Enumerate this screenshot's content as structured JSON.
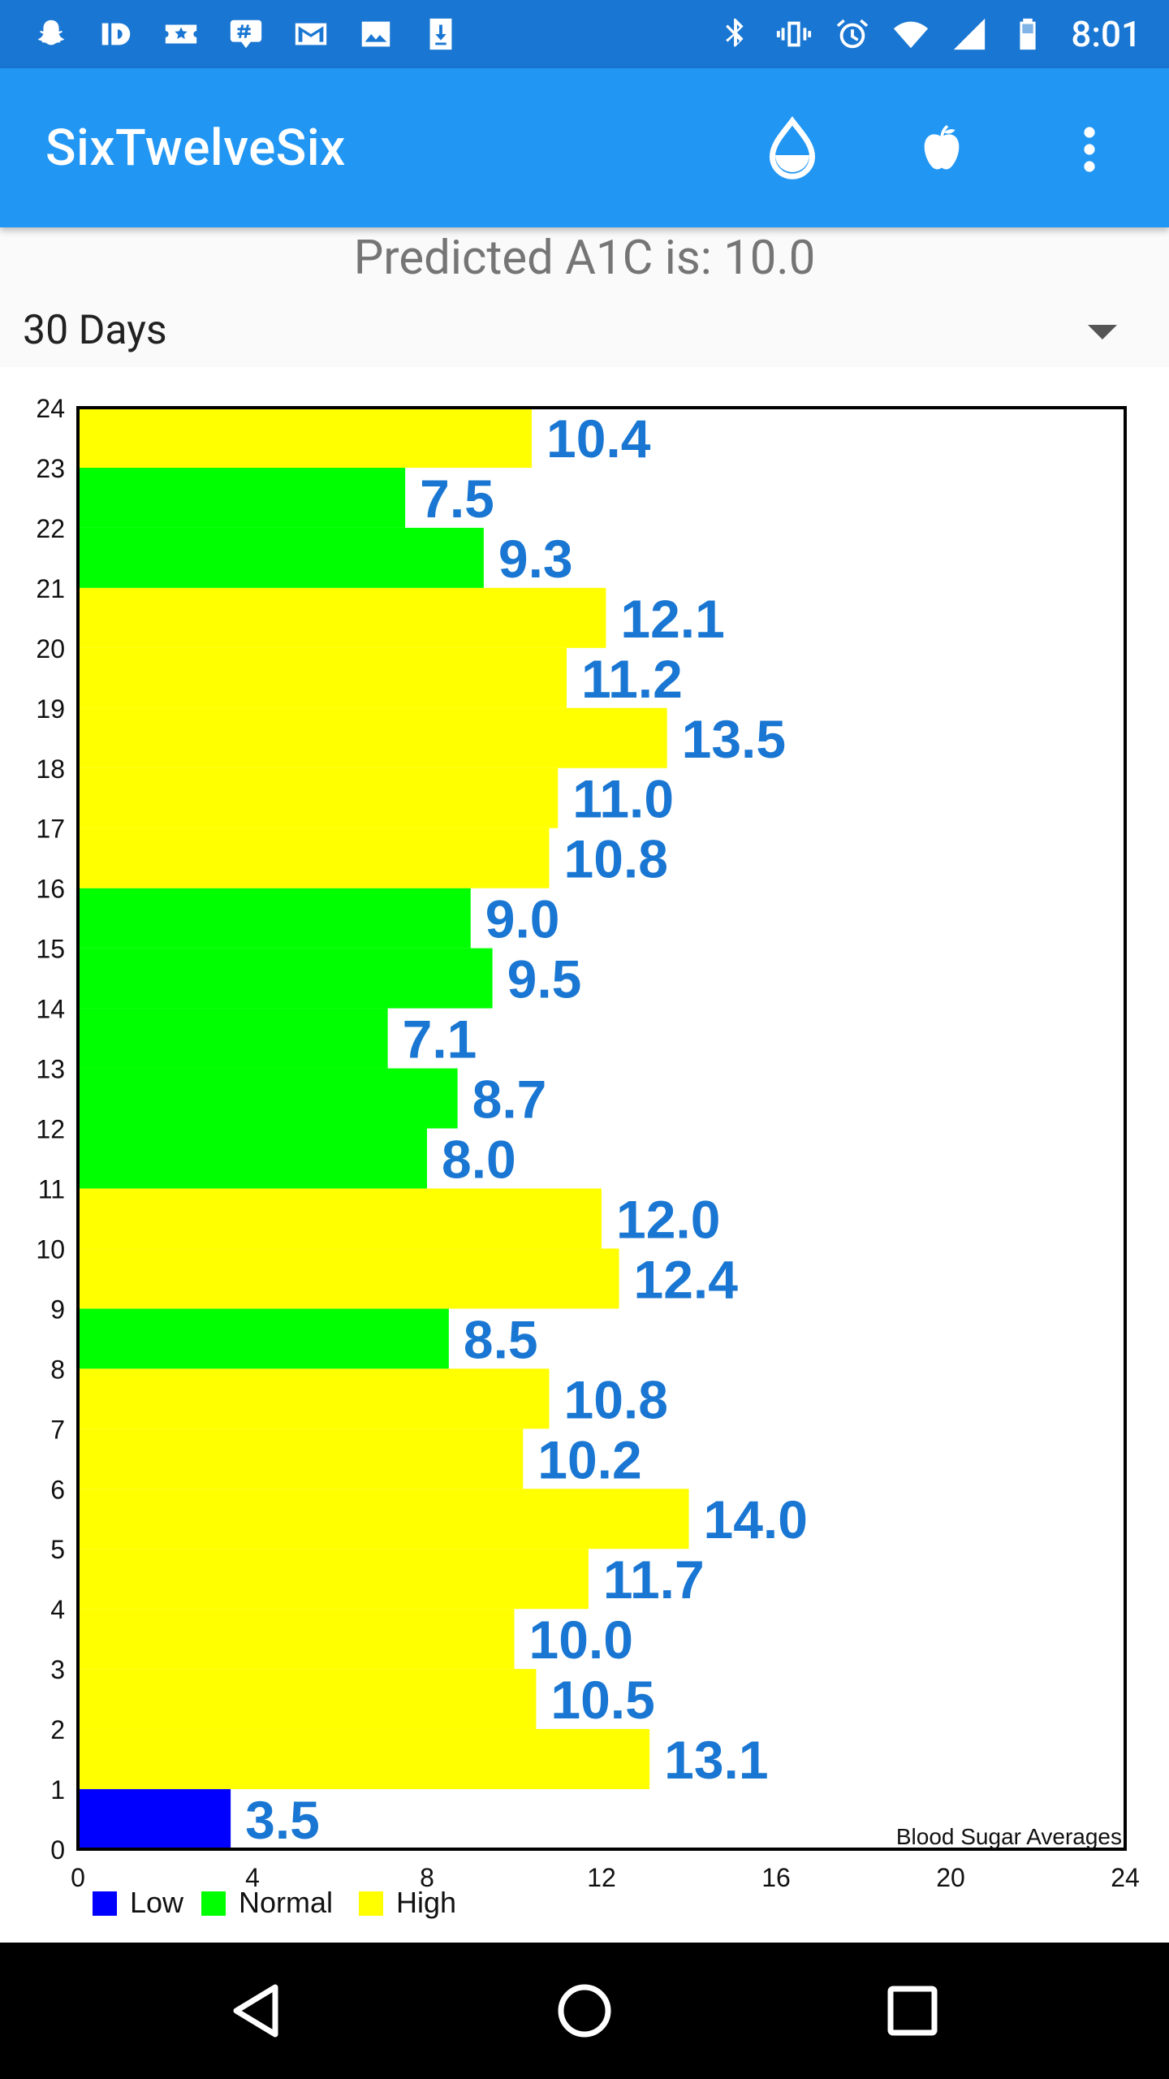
{
  "status_bar": {
    "time": "8:01",
    "left_icons": [
      "snapchat-icon",
      "id-icon",
      "ticket-star-icon",
      "hashtag-app-icon",
      "gmail-icon",
      "image-icon",
      "download-icon"
    ],
    "right_icons": [
      "bluetooth-icon",
      "vibrate-icon",
      "alarm-icon",
      "wifi-icon",
      "signal-icon",
      "battery-icon"
    ]
  },
  "app_bar": {
    "title": "SixTwelveSix",
    "actions": [
      "blood-drop-icon",
      "apple-icon",
      "overflow-menu-icon"
    ]
  },
  "summary": {
    "predicted_text": "Predicted A1C is: 10.0"
  },
  "range_dropdown": {
    "selected": "30 Days"
  },
  "colors": {
    "app_bar": "#2196f3",
    "status_bar": "#1976d2",
    "label_blue": "#1976d2",
    "low": "#0000ff",
    "normal": "#00ff00",
    "high": "#ffff00"
  },
  "chart_data": {
    "type": "bar",
    "orientation": "horizontal",
    "title": "Blood Sugar Averages",
    "categories": [
      "0",
      "1",
      "2",
      "3",
      "4",
      "5",
      "6",
      "7",
      "8",
      "9",
      "10",
      "11",
      "12",
      "13",
      "14",
      "15",
      "16",
      "17",
      "18",
      "19",
      "20",
      "21",
      "22",
      "23"
    ],
    "values": [
      3.5,
      13.1,
      10.5,
      10.0,
      11.7,
      14.0,
      10.2,
      10.8,
      8.5,
      12.4,
      12.0,
      8.0,
      8.7,
      7.1,
      9.5,
      9.0,
      10.8,
      11.0,
      13.5,
      11.2,
      12.1,
      9.3,
      7.5,
      10.4
    ],
    "value_labels": [
      "3.5",
      "13.1",
      "10.5",
      "10.0",
      "11.7",
      "14.0",
      "10.2",
      "10.8",
      "8.5",
      "12.4",
      "12.0",
      "8.0",
      "8.7",
      "7.1",
      "9.5",
      "9.0",
      "10.8",
      "11.0",
      "13.5",
      "11.2",
      "12.1",
      "9.3",
      "7.5",
      "10.4"
    ],
    "levels": [
      "Low",
      "High",
      "High",
      "High",
      "High",
      "High",
      "High",
      "High",
      "Normal",
      "High",
      "High",
      "Normal",
      "Normal",
      "Normal",
      "Normal",
      "Normal",
      "High",
      "High",
      "High",
      "High",
      "High",
      "Normal",
      "Normal",
      "High"
    ],
    "xlim": [
      0,
      24
    ],
    "ylim": [
      0,
      24
    ],
    "x_ticks": [
      "0",
      "4",
      "8",
      "12",
      "16",
      "20",
      "24"
    ],
    "y_ticks": [
      "0",
      "1",
      "2",
      "3",
      "4",
      "5",
      "6",
      "7",
      "8",
      "9",
      "10",
      "11",
      "12",
      "13",
      "14",
      "15",
      "16",
      "17",
      "18",
      "19",
      "20",
      "21",
      "22",
      "23",
      "24"
    ],
    "legend": [
      {
        "name": "Low",
        "color": "#0000ff"
      },
      {
        "name": "Normal",
        "color": "#00ff00"
      },
      {
        "name": "High",
        "color": "#ffff00"
      }
    ],
    "legend_position": "bottom-left",
    "grid": false
  }
}
